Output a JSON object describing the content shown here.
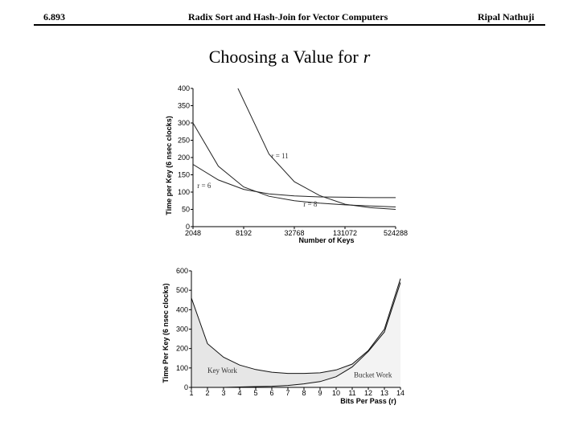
{
  "header": {
    "course": "6.893",
    "topic": "Radix Sort and Hash-Join for Vector Computers",
    "author": "Ripal Nathuji"
  },
  "slide": {
    "title_prefix": "Choosing a Value for",
    "title_var": "r"
  },
  "chart_data": [
    {
      "type": "line",
      "xlabel": "Number of Keys",
      "ylabel": "Time per Key (6 nsec clocks)",
      "x_scale": "log2",
      "x_ticks": [
        2048,
        8192,
        32768,
        131072,
        524288
      ],
      "ylim": [
        0,
        400
      ],
      "y_ticks": [
        0,
        50,
        100,
        150,
        200,
        250,
        300,
        350,
        400
      ],
      "grid": false,
      "series": [
        {
          "name": "r = 6",
          "points": [
            [
              2048,
              180
            ],
            [
              4096,
              135
            ],
            [
              8192,
              108
            ],
            [
              16384,
              95
            ],
            [
              32768,
              89
            ],
            [
              65536,
              86
            ],
            [
              131072,
              85
            ],
            [
              262144,
              84
            ],
            [
              524288,
              84
            ]
          ]
        },
        {
          "name": "r = 8",
          "points": [
            [
              2048,
              300
            ],
            [
              4096,
              175
            ],
            [
              8192,
              115
            ],
            [
              16384,
              88
            ],
            [
              32768,
              75
            ],
            [
              65536,
              68
            ],
            [
              131072,
              63
            ],
            [
              262144,
              60
            ],
            [
              524288,
              57
            ]
          ]
        },
        {
          "name": "r = 11",
          "points": [
            [
              7000,
              400
            ],
            [
              16384,
              210
            ],
            [
              32768,
              130
            ],
            [
              65536,
              90
            ],
            [
              131072,
              65
            ],
            [
              262144,
              55
            ],
            [
              524288,
              50
            ]
          ]
        }
      ]
    },
    {
      "type": "area",
      "xlabel": "Bits Per Pass (r)",
      "ylabel": "Time Per Key (6 nsec clocks)",
      "x_ticks": [
        1,
        2,
        3,
        4,
        5,
        6,
        7,
        8,
        9,
        10,
        11,
        12,
        13,
        14
      ],
      "xlim": [
        1,
        14
      ],
      "ylim": [
        0,
        600
      ],
      "y_ticks": [
        0,
        100,
        200,
        300,
        400,
        500,
        600
      ],
      "grid": false,
      "series": [
        {
          "name": "Bucket Work",
          "x": [
            1,
            2,
            3,
            4,
            5,
            6,
            7,
            8,
            9,
            10,
            11,
            12,
            13,
            14
          ],
          "values": [
            0,
            0,
            0,
            2,
            4,
            6,
            10,
            18,
            30,
            55,
            105,
            185,
            285,
            540
          ]
        },
        {
          "name": "Key Work",
          "x": [
            1,
            2,
            3,
            4,
            5,
            6,
            7,
            8,
            9,
            10,
            11,
            12,
            13,
            14
          ],
          "values": [
            460,
            225,
            155,
            115,
            92,
            78,
            72,
            72,
            75,
            90,
            120,
            190,
            300,
            560
          ]
        }
      ]
    }
  ]
}
